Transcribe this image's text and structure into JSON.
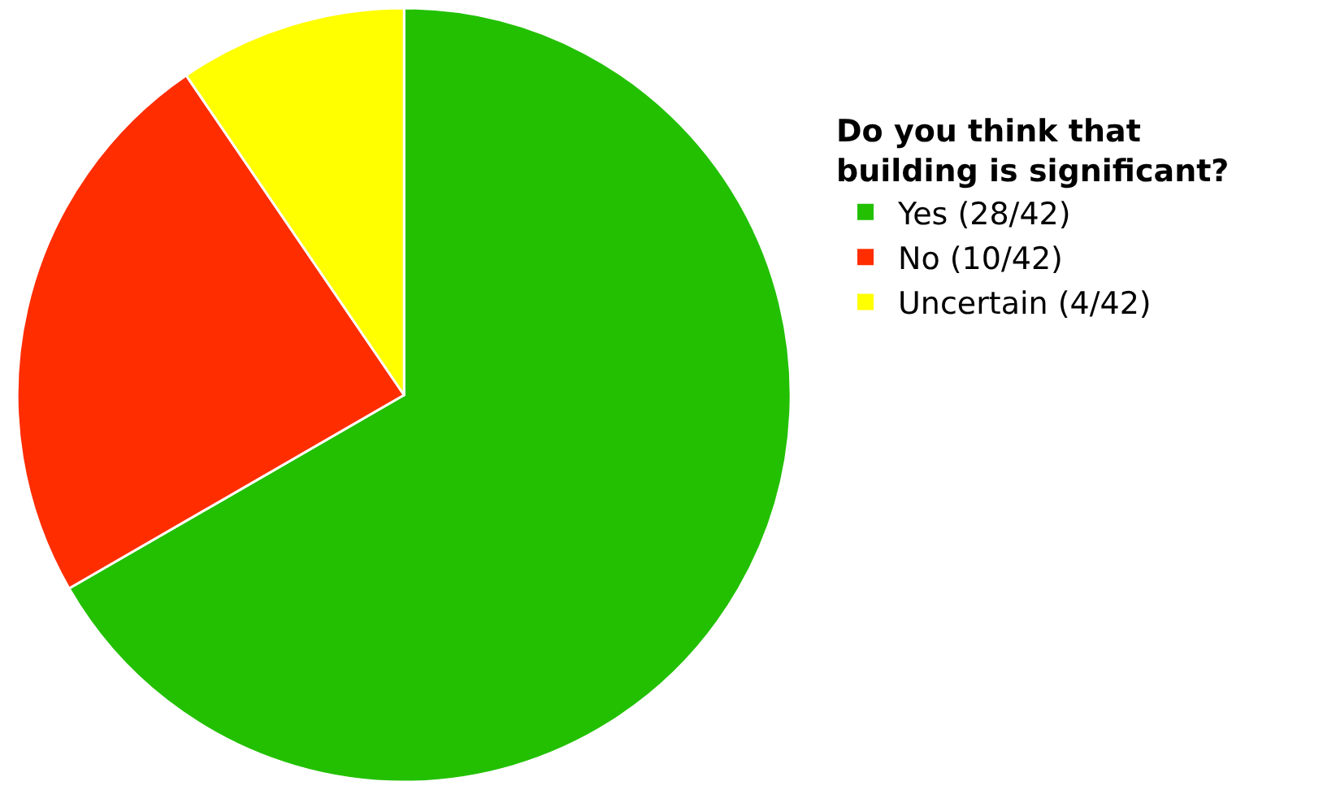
{
  "chart_data": {
    "type": "pie",
    "legend_title": "Do you think that\nbuilding is significant?",
    "categories": [
      "Yes (28/42)",
      "No (10/42)",
      "Uncertain (4/42)"
    ],
    "values": [
      28,
      10,
      4
    ],
    "colors": [
      "#22c000",
      "#ff2d00",
      "#ffff00"
    ],
    "legend": "right"
  }
}
